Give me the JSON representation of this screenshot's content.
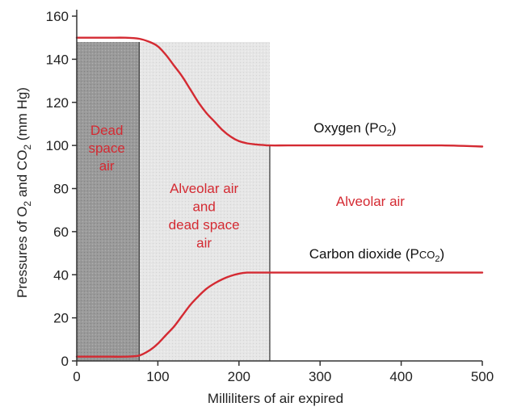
{
  "chart_data": {
    "type": "line",
    "xlabel": "Milliliters of air expired",
    "ylabel": {
      "parts": [
        "Pressures of O",
        "2",
        " and CO",
        "2",
        " (mm Hg)"
      ]
    },
    "xlim": [
      0,
      500
    ],
    "ylim": [
      0,
      160
    ],
    "x_ticks": [
      0,
      100,
      200,
      300,
      400,
      500
    ],
    "y_ticks": [
      0,
      20,
      40,
      60,
      80,
      100,
      120,
      140,
      160
    ],
    "grid": false,
    "colors": {
      "series": "#d42a32",
      "region_label": "#d42a32",
      "dead_space_fill": "#9a9a9a",
      "mixed_fill": "#e6e6e6",
      "axis": "#333333"
    },
    "regions": [
      {
        "name": "dead-space",
        "x0": 0,
        "x1": 77,
        "y_top": 148,
        "label_lines": [
          "Dead",
          "space",
          "air"
        ]
      },
      {
        "name": "mixed",
        "x0": 77,
        "x1": 238,
        "y_top": 148,
        "label_lines": [
          "Alveolar air",
          "and",
          "dead space",
          "air"
        ]
      },
      {
        "name": "alveolar",
        "x0": 238,
        "x1": 500,
        "label_lines": [
          "Alveolar air"
        ]
      }
    ],
    "series": [
      {
        "name": "Oxygen (PO2)",
        "label_text": "Oxygen (P",
        "label_sub": "O",
        "label_sub2": "2",
        "label_tail": ")",
        "x": [
          0,
          20,
          40,
          60,
          77,
          90,
          100,
          110,
          120,
          130,
          140,
          150,
          160,
          170,
          180,
          190,
          200,
          210,
          220,
          230,
          238,
          260,
          300,
          350,
          400,
          450,
          500
        ],
        "y": [
          150,
          150,
          150,
          150,
          149.5,
          148,
          146,
          142,
          137,
          132,
          126,
          120,
          115,
          111,
          107,
          104,
          102,
          101,
          100.5,
          100.2,
          100,
          100,
          100,
          100,
          100,
          100,
          99.5
        ]
      },
      {
        "name": "Carbon dioxide (PCO2)",
        "label_text": "Carbon dioxide (P",
        "label_sub": "CO",
        "label_sub2": "2",
        "label_tail": ")",
        "x": [
          0,
          20,
          40,
          60,
          77,
          90,
          100,
          110,
          120,
          130,
          140,
          150,
          160,
          170,
          180,
          190,
          200,
          210,
          220,
          230,
          238,
          260,
          300,
          350,
          400,
          450,
          500
        ],
        "y": [
          2,
          2,
          2,
          2,
          2.5,
          5,
          8,
          12,
          16,
          21,
          26,
          30,
          33.5,
          36,
          38,
          39.5,
          40.5,
          41,
          41,
          41,
          41,
          41,
          41,
          41,
          41,
          41,
          41
        ]
      }
    ]
  }
}
